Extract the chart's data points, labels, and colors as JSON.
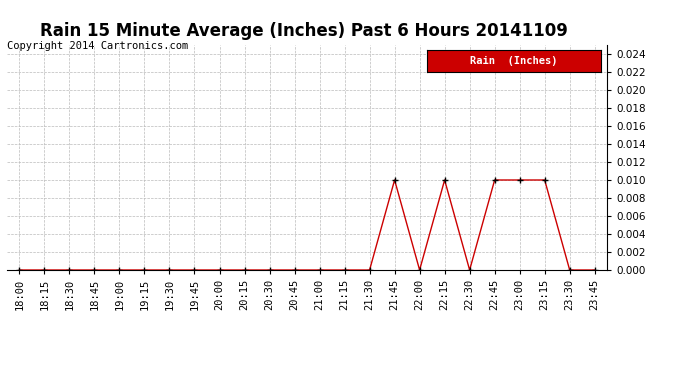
{
  "title": "Rain 15 Minute Average (Inches) Past 6 Hours 20141109",
  "copyright": "Copyright 2014 Cartronics.com",
  "legend_label": "Rain  (Inches)",
  "x_labels": [
    "18:00",
    "18:15",
    "18:30",
    "18:45",
    "19:00",
    "19:15",
    "19:30",
    "19:45",
    "20:00",
    "20:15",
    "20:30",
    "20:45",
    "21:00",
    "21:15",
    "21:30",
    "21:45",
    "22:00",
    "22:15",
    "22:30",
    "22:45",
    "23:00",
    "23:15",
    "23:30",
    "23:45"
  ],
  "y_values": [
    0.0,
    0.0,
    0.0,
    0.0,
    0.0,
    0.0,
    0.0,
    0.0,
    0.0,
    0.0,
    0.0,
    0.0,
    0.0,
    0.0,
    0.0,
    0.01,
    0.0,
    0.01,
    0.0,
    0.01,
    0.01,
    0.01,
    0.0,
    0.0
  ],
  "ylim": [
    0,
    0.025
  ],
  "y_ticks": [
    0.0,
    0.002,
    0.004,
    0.006,
    0.008,
    0.01,
    0.012,
    0.014,
    0.016,
    0.018,
    0.02,
    0.022,
    0.024
  ],
  "line_color": "#cc0000",
  "marker_color": "#000000",
  "legend_bg": "#cc0000",
  "legend_text_color": "#ffffff",
  "bg_color": "#ffffff",
  "grid_color": "#bbbbbb",
  "title_fontsize": 12,
  "copyright_fontsize": 7.5,
  "tick_fontsize": 7.5,
  "legend_fontsize": 7.5
}
